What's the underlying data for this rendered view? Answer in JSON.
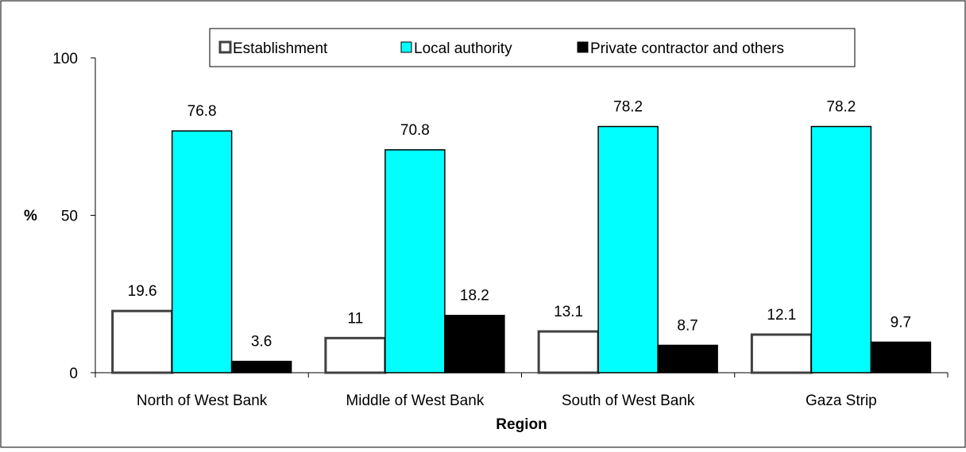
{
  "chart_data": {
    "type": "bar",
    "title": "",
    "xlabel": "Region",
    "ylabel": "%",
    "ylim": [
      0,
      100
    ],
    "yticks": [
      "0",
      "50",
      "100"
    ],
    "grid": false,
    "legend_position": "top",
    "categories": [
      "North of West Bank",
      "Middle of West Bank",
      "South of West Bank",
      "Gaza Strip"
    ],
    "series": [
      {
        "name": "Establishment",
        "values": [
          19.6,
          11,
          13.1,
          12.1
        ],
        "labels": [
          "19.6",
          "11",
          "13.1",
          "12.1"
        ],
        "fill": "#ffffff",
        "stroke": "#404040"
      },
      {
        "name": "Local authority",
        "values": [
          76.8,
          70.8,
          78.2,
          78.2
        ],
        "labels": [
          "76.8",
          "70.8",
          "78.2",
          "78.2"
        ],
        "fill": "#00ffff",
        "stroke": "#000000"
      },
      {
        "name": "Private contractor and others",
        "values": [
          3.6,
          18.2,
          8.7,
          9.7
        ],
        "labels": [
          "3.6",
          "18.2",
          "8.7",
          "9.7"
        ],
        "fill": "#000000",
        "stroke": "#000000"
      }
    ]
  }
}
